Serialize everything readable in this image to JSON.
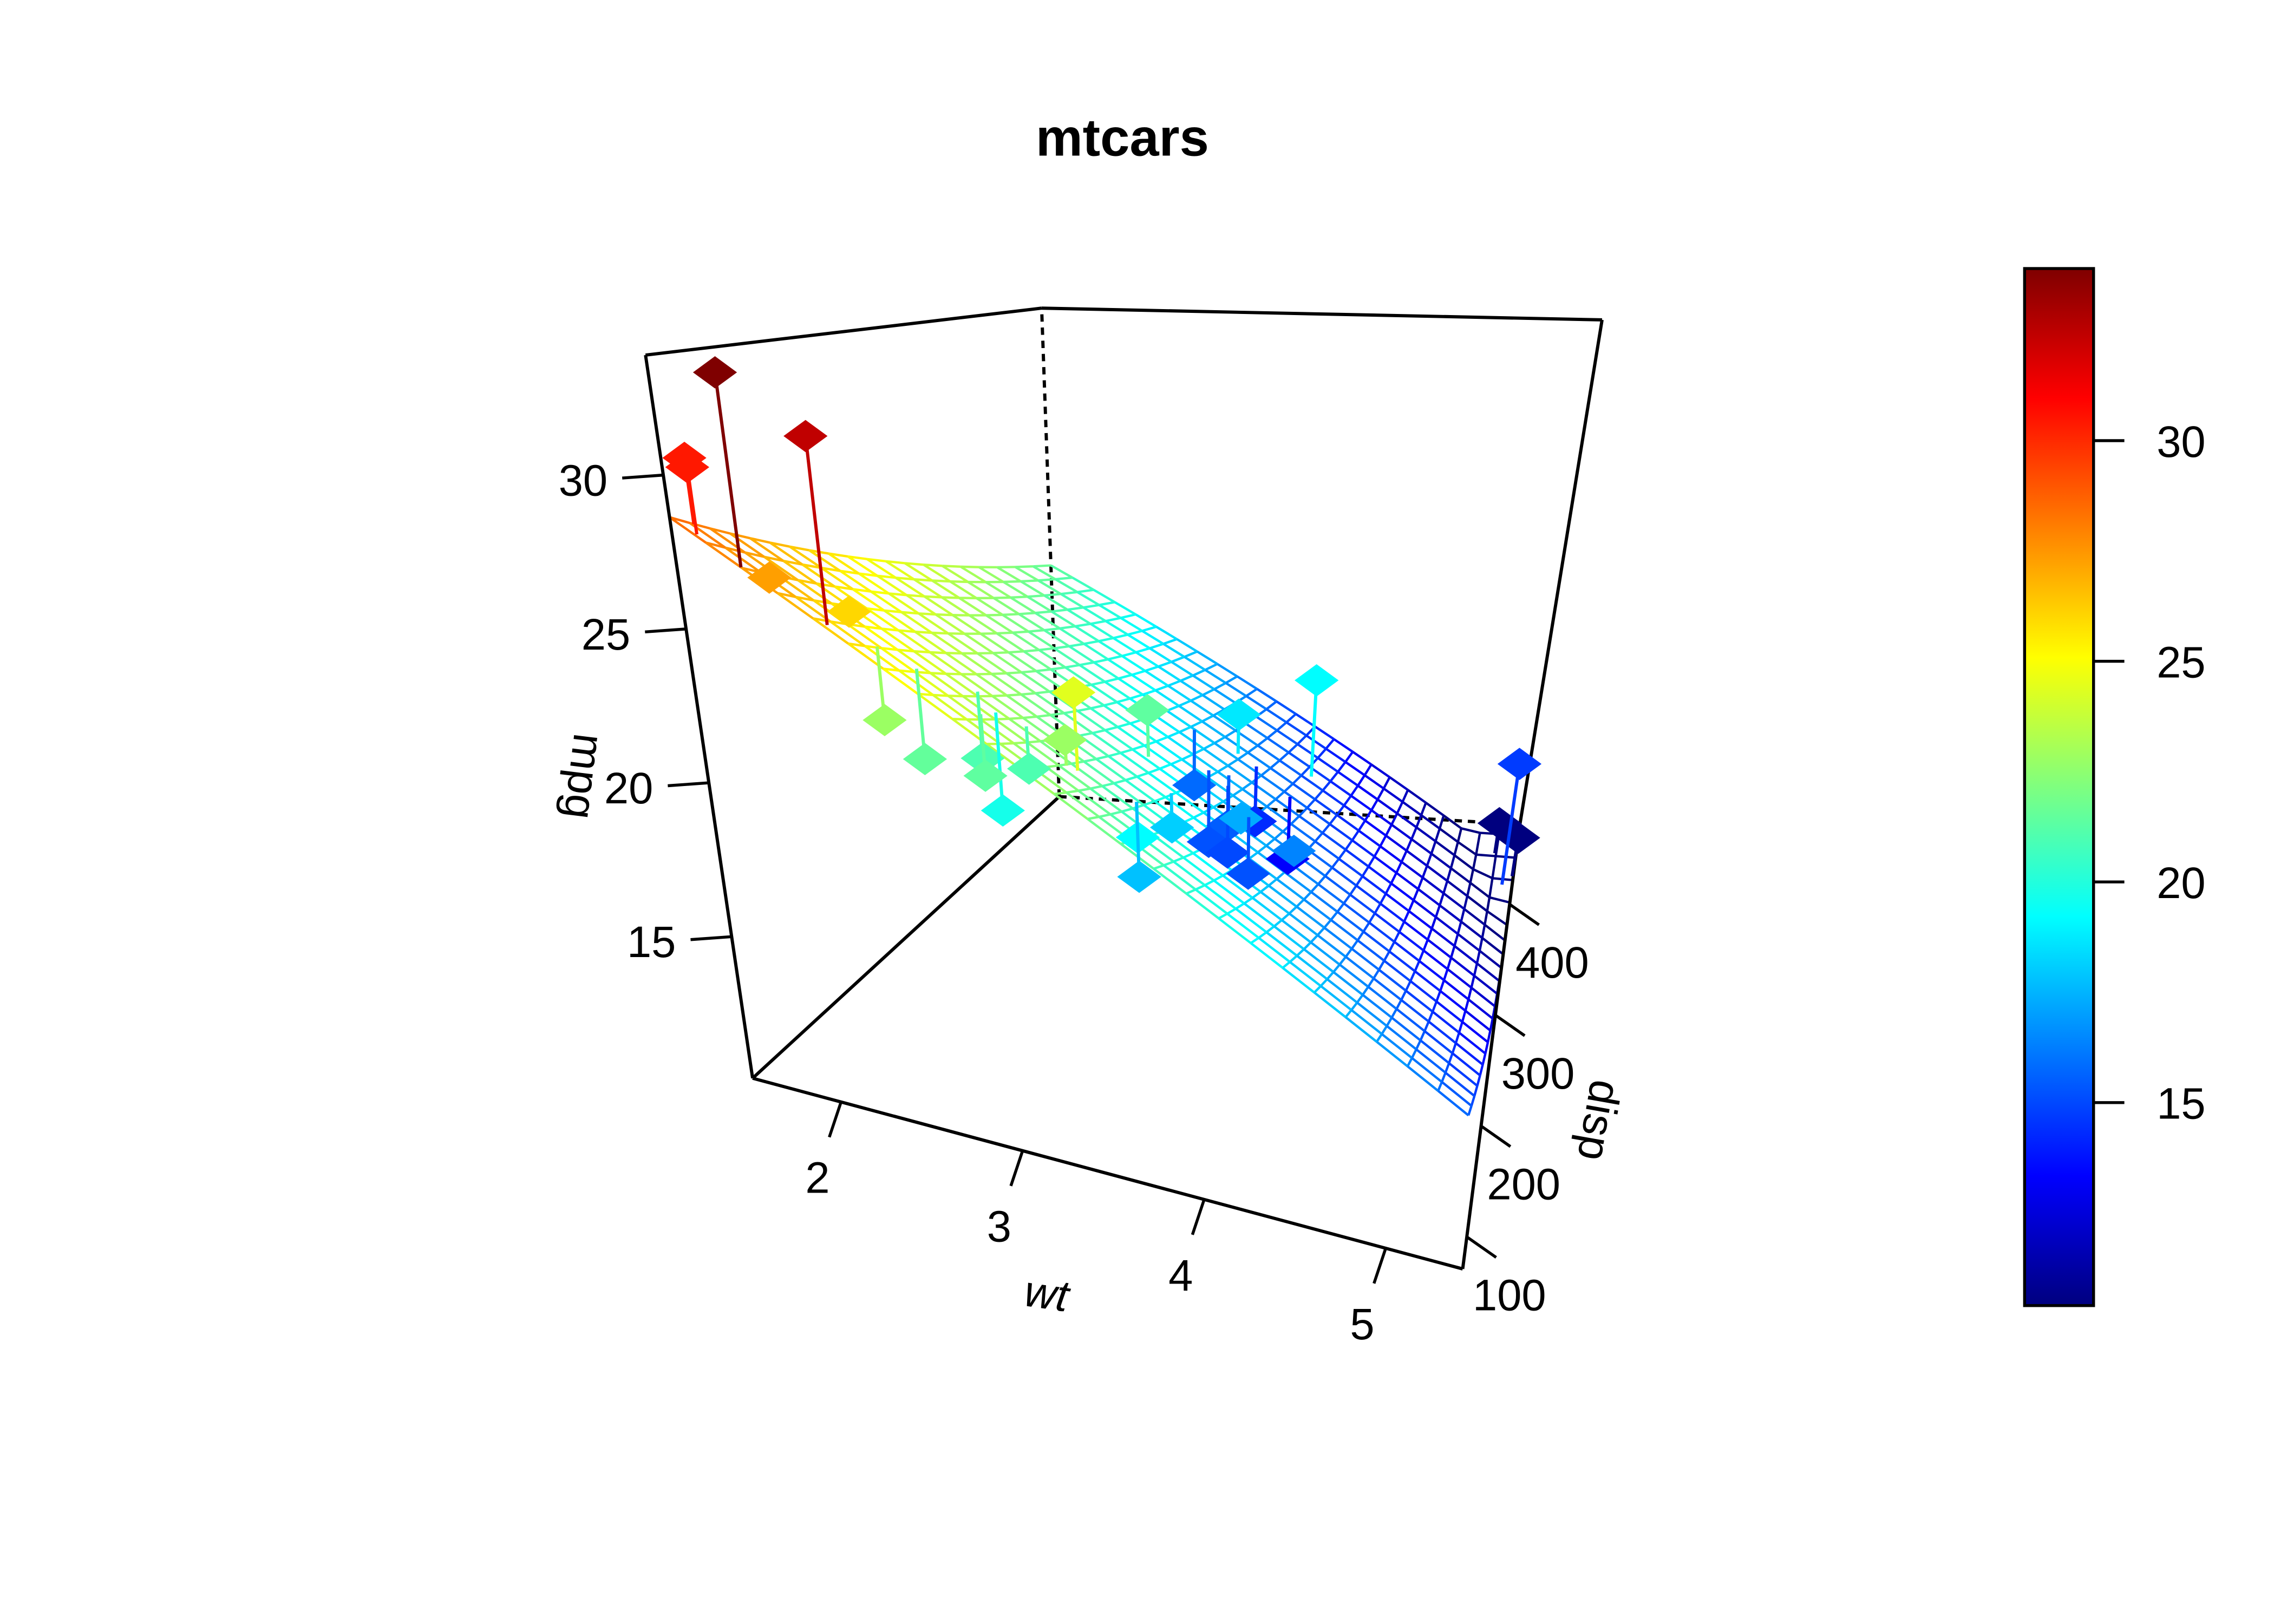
{
  "chart_data": {
    "type": "scatter3d",
    "title": "mtcars",
    "xlabel": "wt",
    "ylabel": "disp",
    "zlabel": "mpg",
    "xlim": [
      1.513,
      5.424
    ],
    "ylim": [
      71.1,
      472
    ],
    "zlim": [
      10.4,
      33.9
    ],
    "xticks": [
      "2",
      "3",
      "4",
      "5"
    ],
    "yticks": [
      "100",
      "200",
      "300",
      "400"
    ],
    "zticks": [
      "15",
      "20",
      "25",
      "30"
    ],
    "colorbar": {
      "range": [
        10.4,
        33.9
      ],
      "ticks": [
        "15",
        "20",
        "25",
        "30"
      ],
      "placement": "right"
    },
    "colormap": [
      "#00007F",
      "#0000FF",
      "#007FFF",
      "#00FFFF",
      "#7FFF7F",
      "#FFFF00",
      "#FF7F00",
      "#FF0000",
      "#7F0000"
    ],
    "surface": {
      "type": "fitted plane",
      "intercept": 34.961,
      "coef_wt": -3.351,
      "coef_disp": -0.01773
    },
    "points": {
      "wt": [
        2.62,
        2.875,
        2.32,
        3.215,
        3.44,
        3.46,
        3.57,
        3.19,
        3.15,
        3.44,
        3.44,
        4.07,
        3.73,
        3.78,
        5.25,
        5.424,
        5.345,
        2.2,
        1.615,
        1.835,
        2.465,
        3.52,
        3.435,
        3.84,
        3.845,
        1.935,
        2.14,
        1.513,
        3.17,
        2.77,
        3.57,
        2.78
      ],
      "disp": [
        160,
        160,
        108,
        258,
        360,
        225,
        360,
        146.7,
        140.8,
        167.6,
        167.6,
        275.8,
        275.8,
        275.8,
        472,
        460,
        440,
        78.7,
        75.7,
        71.1,
        120.1,
        318,
        304,
        350,
        400,
        79,
        120.3,
        95.1,
        351,
        145,
        301,
        121
      ],
      "mpg": [
        21.0,
        21.0,
        22.8,
        21.4,
        18.7,
        18.1,
        14.3,
        24.4,
        22.8,
        19.2,
        17.8,
        16.4,
        17.3,
        15.2,
        10.4,
        10.4,
        14.7,
        32.4,
        30.4,
        33.9,
        21.5,
        15.5,
        15.2,
        13.3,
        19.2,
        27.3,
        26.0,
        30.4,
        15.8,
        19.7,
        15.0,
        21.4
      ]
    }
  }
}
